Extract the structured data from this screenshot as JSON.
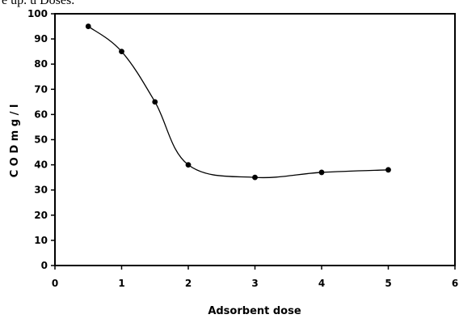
{
  "top_fragment": "e up. u Doses.",
  "chart_data": {
    "type": "line",
    "xlabel": "Adsorbent dose",
    "ylabel": "C O D  m g / l",
    "xlim": [
      0,
      6
    ],
    "ylim": [
      0,
      100
    ],
    "xticks": [
      0,
      1,
      2,
      3,
      4,
      5,
      6
    ],
    "yticks": [
      0,
      10,
      20,
      30,
      40,
      50,
      60,
      70,
      80,
      90,
      100
    ],
    "grid": false,
    "legend": "none",
    "smoothed": true,
    "series": [
      {
        "x": [
          0.5,
          1,
          1.5,
          2,
          3,
          4,
          5
        ],
        "y": [
          95,
          85,
          65,
          40,
          35,
          37,
          38
        ]
      }
    ],
    "colors": {
      "line": "#000000",
      "marker": "#000000",
      "axis": "#000000"
    }
  }
}
